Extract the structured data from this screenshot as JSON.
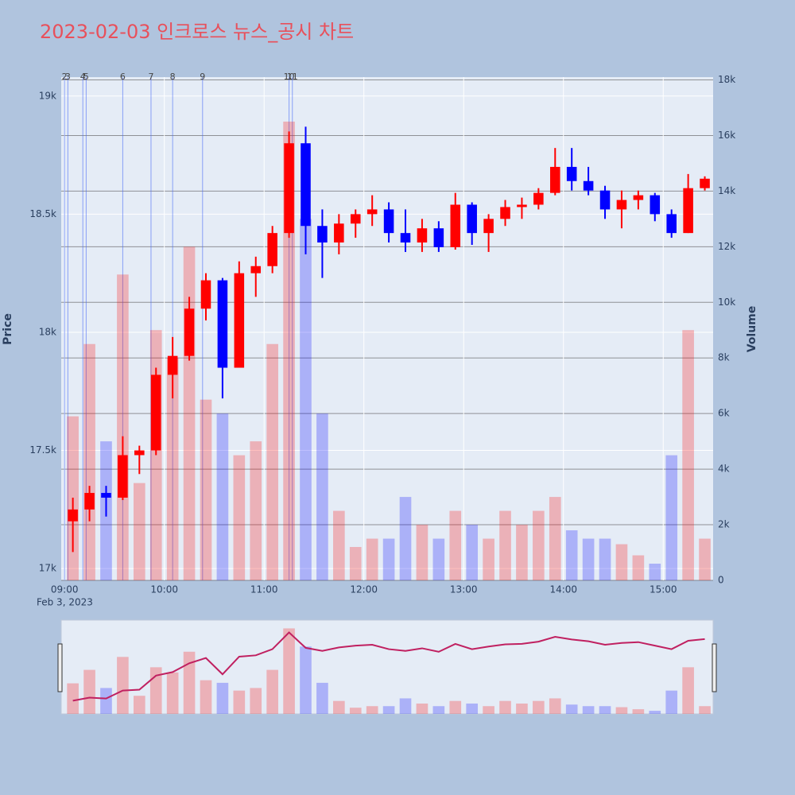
{
  "chart_data": {
    "type": "candlestick",
    "title": "2023-02-03 인크로스 뉴스_공시 차트",
    "ylabel": "Price",
    "y2label": "Volume",
    "x": [
      "09:00",
      "09:10",
      "09:20",
      "09:30",
      "09:40",
      "09:50",
      "10:00",
      "10:10",
      "10:20",
      "10:30",
      "10:40",
      "10:50",
      "11:00",
      "11:10",
      "11:20",
      "11:30",
      "11:40",
      "11:50",
      "12:00",
      "12:10",
      "12:20",
      "12:30",
      "12:40",
      "12:50",
      "13:00",
      "13:10",
      "13:20",
      "13:30",
      "13:40",
      "13:50",
      "14:00",
      "14:10",
      "14:20",
      "14:30",
      "14:40",
      "14:50",
      "15:00",
      "15:10",
      "15:20"
    ],
    "open": [
      17200,
      17250,
      17320,
      17300,
      17480,
      17500,
      17820,
      17900,
      18100,
      18220,
      17850,
      18250,
      18280,
      18420,
      18800,
      18450,
      18380,
      18460,
      18500,
      18520,
      18420,
      18380,
      18440,
      18360,
      18540,
      18420,
      18480,
      18530,
      18540,
      18590,
      18700,
      18640,
      18600,
      18520,
      18560,
      18580,
      18500,
      18420,
      18610
    ],
    "high": [
      17300,
      17350,
      17350,
      17560,
      17520,
      17850,
      17980,
      18150,
      18250,
      18230,
      18300,
      18320,
      18450,
      18850,
      18870,
      18520,
      18500,
      18520,
      18580,
      18550,
      18520,
      18480,
      18470,
      18590,
      18550,
      18500,
      18560,
      18570,
      18610,
      18780,
      18780,
      18700,
      18620,
      18600,
      18600,
      18590,
      18520,
      18670,
      18660
    ],
    "low": [
      17070,
      17200,
      17220,
      17290,
      17400,
      17480,
      17720,
      17880,
      18050,
      17720,
      17850,
      18150,
      18250,
      18400,
      18330,
      18230,
      18330,
      18400,
      18450,
      18380,
      18340,
      18340,
      18340,
      18350,
      18370,
      18340,
      18450,
      18480,
      18520,
      18580,
      18600,
      18580,
      18480,
      18440,
      18520,
      18470,
      18400,
      18420,
      18600
    ],
    "close": [
      17250,
      17320,
      17300,
      17480,
      17500,
      17820,
      17900,
      18100,
      18220,
      17850,
      18250,
      18280,
      18420,
      18800,
      18450,
      18380,
      18460,
      18500,
      18520,
      18420,
      18380,
      18440,
      18360,
      18540,
      18420,
      18480,
      18530,
      18540,
      18590,
      18700,
      18640,
      18600,
      18520,
      18560,
      18580,
      18500,
      18420,
      18610,
      18650
    ],
    "volume": [
      5900,
      8500,
      5000,
      11000,
      3500,
      9000,
      8000,
      12000,
      6500,
      6000,
      4500,
      5000,
      8500,
      16500,
      13000,
      6000,
      2500,
      1200,
      1500,
      1500,
      3000,
      2000,
      1500,
      2500,
      2000,
      1500,
      2500,
      2000,
      2500,
      3000,
      1800,
      1500,
      1500,
      1300,
      900,
      600,
      4500,
      9000,
      1500
    ],
    "increasing_color": "#ff0000",
    "decreasing_color": "#0000ff",
    "xlim": [
      "08:58",
      "15:30"
    ],
    "xticks": [
      "09:00",
      "10:00",
      "11:00",
      "12:00",
      "13:00",
      "14:00",
      "15:00"
    ],
    "x_date_label": "Feb 3, 2023",
    "ylim": [
      16950,
      19080
    ],
    "yticks": [
      {
        "value": 17000,
        "label": "17k"
      },
      {
        "value": 17500,
        "label": "17.5k"
      },
      {
        "value": 18000,
        "label": "18k"
      },
      {
        "value": 18500,
        "label": "18.5k"
      },
      {
        "value": 19000,
        "label": "19k"
      }
    ],
    "y2lim": [
      0,
      18100
    ],
    "y2ticks": [
      0,
      {
        "value": 2000,
        "label": "2k"
      },
      {
        "value": 4000,
        "label": "4k"
      },
      {
        "value": 6000,
        "label": "6k"
      },
      {
        "value": 8000,
        "label": "8k"
      },
      {
        "value": 10000,
        "label": "10k"
      },
      {
        "value": 12000,
        "label": "12k"
      },
      {
        "value": 14000,
        "label": "14k"
      },
      {
        "value": 16000,
        "label": "16k"
      },
      {
        "value": 18000,
        "label": "18k"
      }
    ],
    "news": [
      {
        "x": "09:00",
        "label": "2"
      },
      {
        "x": "09:02",
        "label": "3"
      },
      {
        "x": "09:11",
        "label": "4"
      },
      {
        "x": "09:13",
        "label": "5"
      },
      {
        "x": "09:35",
        "label": "6"
      },
      {
        "x": "09:52",
        "label": "7"
      },
      {
        "x": "10:05",
        "label": "8"
      },
      {
        "x": "10:23",
        "label": "9"
      },
      {
        "x": "11:15",
        "label": "10"
      },
      {
        "x": "11:17",
        "label": "11"
      }
    ],
    "grid": true,
    "rangeslider": true
  }
}
